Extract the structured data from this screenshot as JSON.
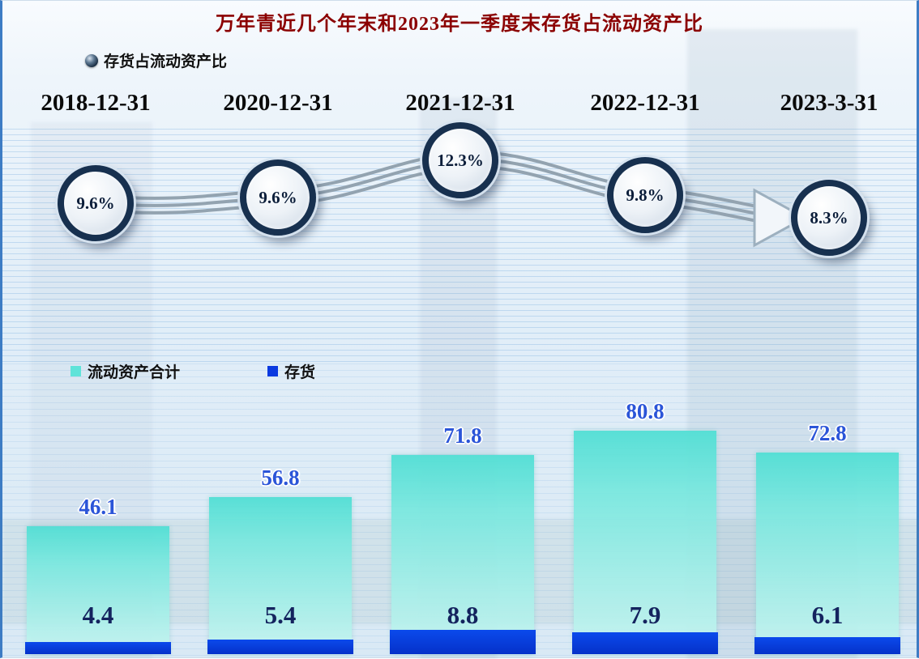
{
  "chart_data": {
    "type": "combo",
    "title": "万年青近几个年末和2023年一季度末存货占流动资产比",
    "categories": [
      "2018-12-31",
      "2020-12-31",
      "2021-12-31",
      "2022-12-31",
      "2023-3-31"
    ],
    "line_series": {
      "name": "存货占流动资产比",
      "type": "line",
      "unit": "%",
      "values": [
        9.6,
        9.6,
        12.3,
        9.8,
        8.3
      ],
      "labels": [
        "9.6%",
        "9.6%",
        "12.3%",
        "9.8%",
        "8.3%"
      ],
      "marker": "circle-badge",
      "legend_position": "top-left"
    },
    "series": [
      {
        "name": "流动资产合计",
        "type": "bar",
        "color": "#5fe3d9",
        "values": [
          46.1,
          56.8,
          71.8,
          80.8,
          72.8
        ],
        "labels": [
          "46.1",
          "56.8",
          "71.8",
          "80.8",
          "72.8"
        ]
      },
      {
        "name": "存货",
        "type": "bar",
        "color": "#0a3ae0",
        "values": [
          4.4,
          5.4,
          8.8,
          7.9,
          6.1
        ],
        "labels": [
          "4.4",
          "5.4",
          "8.8",
          "7.9",
          "6.1"
        ]
      }
    ],
    "ylim_bars": [
      0,
      90
    ],
    "grid": "horizontal stripe background",
    "bars_legend_position": "middle-left"
  }
}
